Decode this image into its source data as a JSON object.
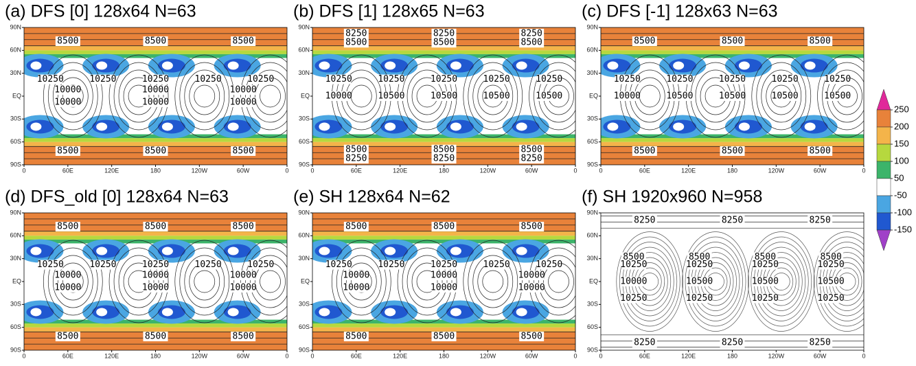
{
  "chart_data": [
    {
      "type": "contour",
      "title": "(a) DFS [0]   128x64   N=63",
      "shading": true,
      "xlim": [
        0,
        360
      ],
      "xticks": [
        0,
        {
          "value": 60,
          "label": "60E"
        },
        {
          "value": 120,
          "label": "120E"
        },
        180,
        {
          "value": 240,
          "label": "120W"
        },
        {
          "value": 300,
          "label": "60W"
        },
        {
          "value": 360,
          "label": "0"
        }
      ],
      "ylim": [
        -90,
        90
      ],
      "yticks": [
        {
          "value": 90,
          "label": "90N"
        },
        {
          "value": 60,
          "label": "60N"
        },
        {
          "value": 30,
          "label": "30N"
        },
        {
          "value": 0,
          "label": "EQ"
        },
        {
          "value": -30,
          "label": "30S"
        },
        {
          "value": -60,
          "label": "60S"
        },
        {
          "value": -90,
          "label": "90S"
        }
      ],
      "contour_labels": [
        {
          "lat": 72,
          "values": [
            8500,
            8500,
            8500
          ]
        },
        {
          "lat": 22,
          "values": [
            10250,
            10250,
            10250,
            10250,
            10250
          ]
        },
        {
          "lat": 8,
          "values": [
            10000,
            10000,
            10000
          ]
        },
        {
          "lat": -8,
          "values": [
            10000,
            10000,
            10000
          ]
        },
        {
          "lat": -72,
          "values": [
            8500,
            8500,
            8500
          ]
        }
      ]
    },
    {
      "type": "contour",
      "title": "(b) DFS [1]   128x65   N=63",
      "shading": true,
      "xlim": [
        0,
        360
      ],
      "xticks": [
        0,
        {
          "value": 60,
          "label": "60E"
        },
        {
          "value": 120,
          "label": "120E"
        },
        180,
        {
          "value": 240,
          "label": "120W"
        },
        {
          "value": 300,
          "label": "60W"
        },
        {
          "value": 360,
          "label": "0"
        }
      ],
      "ylim": [
        -90,
        90
      ],
      "yticks": [
        {
          "value": 90,
          "label": "90N"
        },
        {
          "value": 60,
          "label": "60N"
        },
        {
          "value": 30,
          "label": "30N"
        },
        {
          "value": 0,
          "label": "EQ"
        },
        {
          "value": -30,
          "label": "30S"
        },
        {
          "value": -60,
          "label": "60S"
        },
        {
          "value": -90,
          "label": "90S"
        }
      ],
      "contour_labels": [
        {
          "lat": 82,
          "values": [
            8250,
            8250,
            8250
          ]
        },
        {
          "lat": 70,
          "values": [
            8500,
            8500,
            8500
          ]
        },
        {
          "lat": 22,
          "values": [
            10250,
            10250,
            10250,
            10250,
            10250
          ]
        },
        {
          "lat": 0,
          "values": [
            10000,
            10500,
            10500,
            10500,
            10500
          ]
        },
        {
          "lat": -70,
          "values": [
            8500,
            8500,
            8500
          ]
        },
        {
          "lat": -82,
          "values": [
            8250,
            8250,
            8250
          ]
        }
      ]
    },
    {
      "type": "contour",
      "title": "(c) DFS [-1]   128x63   N=63",
      "shading": true,
      "xlim": [
        0,
        360
      ],
      "xticks": [
        0,
        {
          "value": 60,
          "label": "60E"
        },
        {
          "value": 120,
          "label": "120E"
        },
        180,
        {
          "value": 240,
          "label": "120W"
        },
        {
          "value": 300,
          "label": "60W"
        },
        {
          "value": 360,
          "label": "0"
        }
      ],
      "ylim": [
        -90,
        90
      ],
      "yticks": [
        {
          "value": 90,
          "label": "90N"
        },
        {
          "value": 60,
          "label": "60N"
        },
        {
          "value": 30,
          "label": "30N"
        },
        {
          "value": 0,
          "label": "EQ"
        },
        {
          "value": -30,
          "label": "30S"
        },
        {
          "value": -60,
          "label": "60S"
        },
        {
          "value": -90,
          "label": "90S"
        }
      ],
      "contour_labels": [
        {
          "lat": 72,
          "values": [
            8500,
            8500,
            8500
          ]
        },
        {
          "lat": 22,
          "values": [
            10250,
            10250,
            10250,
            10250,
            10250
          ]
        },
        {
          "lat": 0,
          "values": [
            10000,
            10500,
            10500,
            10500,
            10500
          ]
        },
        {
          "lat": -72,
          "values": [
            8500,
            8500,
            8500
          ]
        }
      ]
    },
    {
      "type": "contour",
      "title": "(d) DFS_old [0]   128x64   N=63",
      "shading": true,
      "xlim": [
        0,
        360
      ],
      "xticks": [
        0,
        {
          "value": 60,
          "label": "60E"
        },
        {
          "value": 120,
          "label": "120E"
        },
        180,
        {
          "value": 240,
          "label": "120W"
        },
        {
          "value": 300,
          "label": "60W"
        },
        {
          "value": 360,
          "label": "0"
        }
      ],
      "ylim": [
        -90,
        90
      ],
      "yticks": [
        {
          "value": 90,
          "label": "90N"
        },
        {
          "value": 60,
          "label": "60N"
        },
        {
          "value": 30,
          "label": "30N"
        },
        {
          "value": 0,
          "label": "EQ"
        },
        {
          "value": -30,
          "label": "30S"
        },
        {
          "value": -60,
          "label": "60S"
        },
        {
          "value": -90,
          "label": "90S"
        }
      ],
      "contour_labels": [
        {
          "lat": 72,
          "values": [
            8500,
            8500,
            8500
          ]
        },
        {
          "lat": 22,
          "values": [
            10250,
            10250,
            10250,
            10250,
            10250
          ]
        },
        {
          "lat": 8,
          "values": [
            10000,
            10000,
            10000
          ]
        },
        {
          "lat": -8,
          "values": [
            10000,
            10000,
            10000
          ]
        },
        {
          "lat": -72,
          "values": [
            8500,
            8500,
            8500
          ]
        }
      ]
    },
    {
      "type": "contour",
      "title": "(e) SH   128x64   N=62",
      "shading": true,
      "xlim": [
        0,
        360
      ],
      "xticks": [
        0,
        {
          "value": 60,
          "label": "60E"
        },
        {
          "value": 120,
          "label": "120E"
        },
        180,
        {
          "value": 240,
          "label": "120W"
        },
        {
          "value": 300,
          "label": "60W"
        },
        {
          "value": 360,
          "label": "0"
        }
      ],
      "ylim": [
        -90,
        90
      ],
      "yticks": [
        {
          "value": 90,
          "label": "90N"
        },
        {
          "value": 60,
          "label": "60N"
        },
        {
          "value": 30,
          "label": "30N"
        },
        {
          "value": 0,
          "label": "EQ"
        },
        {
          "value": -30,
          "label": "30S"
        },
        {
          "value": -60,
          "label": "60S"
        },
        {
          "value": -90,
          "label": "90S"
        }
      ],
      "contour_labels": [
        {
          "lat": 72,
          "values": [
            8500,
            8500,
            8500
          ]
        },
        {
          "lat": 22,
          "values": [
            10250,
            10250,
            10250,
            10250,
            10250
          ]
        },
        {
          "lat": 8,
          "values": [
            10000,
            10000,
            10000
          ]
        },
        {
          "lat": -8,
          "values": [
            10000,
            10000,
            10000
          ]
        },
        {
          "lat": -72,
          "values": [
            8500,
            8500,
            8500
          ]
        }
      ]
    },
    {
      "type": "contour",
      "title": "(f) SH   1920x960   N=958",
      "shading": false,
      "xlim": [
        0,
        360
      ],
      "xticks": [
        0,
        {
          "value": 60,
          "label": "60E"
        },
        {
          "value": 120,
          "label": "120E"
        },
        180,
        {
          "value": 240,
          "label": "120W"
        },
        {
          "value": 300,
          "label": "60W"
        },
        {
          "value": 360,
          "label": "0"
        }
      ],
      "ylim": [
        -90,
        90
      ],
      "yticks": [
        {
          "value": 90,
          "label": "90N"
        },
        {
          "value": 60,
          "label": "60N"
        },
        {
          "value": 30,
          "label": "30N"
        },
        {
          "value": 0,
          "label": "EQ"
        },
        {
          "value": -30,
          "label": "30S"
        },
        {
          "value": -60,
          "label": "60S"
        },
        {
          "value": -90,
          "label": "90S"
        }
      ],
      "contour_labels": [
        {
          "lat": 80,
          "values": [
            8250,
            8250,
            8250
          ]
        },
        {
          "lat": 32,
          "values": [
            8500,
            8500,
            8500,
            8500
          ]
        },
        {
          "lat": 22,
          "values": [
            10250,
            10250,
            10250,
            10250
          ]
        },
        {
          "lat": 0,
          "values": [
            10000,
            10500,
            10500,
            10500
          ]
        },
        {
          "lat": -22,
          "values": [
            10250,
            10250,
            10250,
            10250
          ]
        },
        {
          "lat": -80,
          "values": [
            8250,
            8250,
            8250
          ]
        }
      ]
    }
  ],
  "colorbar": {
    "levels": [
      250,
      200,
      150,
      100,
      50,
      -50,
      -100,
      -150
    ],
    "colors": [
      "#e0289a",
      "#e8823a",
      "#f4b44a",
      "#b6d83e",
      "#3cb46a",
      "#ffffff",
      "#4aa6e2",
      "#2058d0",
      "#a040c8"
    ]
  }
}
